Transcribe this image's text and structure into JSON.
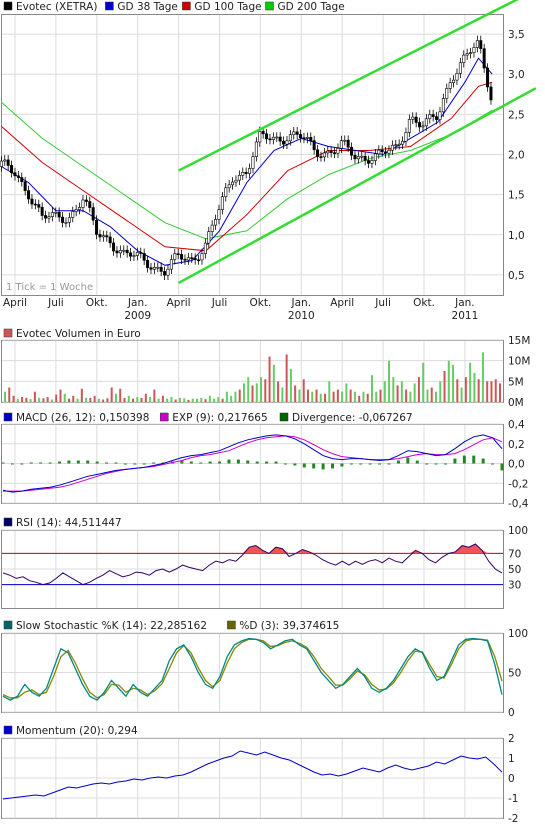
{
  "chart_data": [
    {
      "type": "line",
      "panel": "price",
      "legend": [
        {
          "name": "Evotec (XETRA)",
          "color": "#000000"
        },
        {
          "name": "GD 38 Tage",
          "color": "#0000cc"
        },
        {
          "name": "GD 100 Tage",
          "color": "#cc0000"
        },
        {
          "name": "GD 200 Tage",
          "color": "#00cc00"
        }
      ],
      "note": "1 Tick = 1 Woche",
      "y_ticks": [
        "0,5",
        "1,0",
        "1,5",
        "2,0",
        "2,5",
        "3,0",
        "3,5"
      ],
      "y_tick_values": [
        0.5,
        1.0,
        1.5,
        2.0,
        2.5,
        3.0,
        3.5
      ],
      "ylim": [
        0.25,
        3.75
      ],
      "x_month_labels": [
        "April",
        "Juli",
        "Okt.",
        "Jan.",
        "April",
        "Juli",
        "Okt.",
        "Jan.",
        "April",
        "Juli",
        "Okt.",
        "Jan."
      ],
      "x_year_labels": [
        "2009",
        "2010",
        "2011"
      ],
      "x_label_dates": [
        "2008-04",
        "2008-07",
        "2008-10",
        "2009-01",
        "2009-04",
        "2009-07",
        "2009-10",
        "2010-01",
        "2010-04",
        "2010-07",
        "2010-10",
        "2011-01"
      ],
      "close": [
        {
          "date": "2008-03",
          "value": 1.85
        },
        {
          "date": "2008-04",
          "value": 1.75
        },
        {
          "date": "2008-05",
          "value": 1.55
        },
        {
          "date": "2008-06",
          "value": 1.2
        },
        {
          "date": "2008-07",
          "value": 1.2
        },
        {
          "date": "2008-08",
          "value": 1.25
        },
        {
          "date": "2008-09",
          "value": 1.45
        },
        {
          "date": "2008-10",
          "value": 1.0
        },
        {
          "date": "2008-11",
          "value": 0.95
        },
        {
          "date": "2008-12",
          "value": 0.75
        },
        {
          "date": "2009-01",
          "value": 0.7
        },
        {
          "date": "2009-02",
          "value": 0.65
        },
        {
          "date": "2009-03",
          "value": 0.55
        },
        {
          "date": "2009-04",
          "value": 0.7
        },
        {
          "date": "2009-05",
          "value": 0.7
        },
        {
          "date": "2009-06",
          "value": 0.9
        },
        {
          "date": "2009-07",
          "value": 1.3
        },
        {
          "date": "2009-08",
          "value": 1.75
        },
        {
          "date": "2009-09",
          "value": 1.8
        },
        {
          "date": "2009-10",
          "value": 2.2
        },
        {
          "date": "2009-11",
          "value": 2.2
        },
        {
          "date": "2009-12",
          "value": 2.25
        },
        {
          "date": "2010-01",
          "value": 2.2
        },
        {
          "date": "2010-02",
          "value": 2.05
        },
        {
          "date": "2010-03",
          "value": 2.05
        },
        {
          "date": "2010-04",
          "value": 2.1
        },
        {
          "date": "2010-05",
          "value": 1.95
        },
        {
          "date": "2010-06",
          "value": 2.0
        },
        {
          "date": "2010-07",
          "value": 2.0
        },
        {
          "date": "2010-08",
          "value": 2.05
        },
        {
          "date": "2010-09",
          "value": 2.5
        },
        {
          "date": "2010-10",
          "value": 2.35
        },
        {
          "date": "2010-11",
          "value": 2.45
        },
        {
          "date": "2010-12",
          "value": 3.0
        },
        {
          "date": "2011-01",
          "value": 3.2
        },
        {
          "date": "2011-02",
          "value": 3.35
        },
        {
          "date": "2011-03",
          "value": 2.7
        }
      ],
      "gd38": [
        {
          "date": "2008-03",
          "value": 1.85
        },
        {
          "date": "2008-05",
          "value": 1.65
        },
        {
          "date": "2008-07",
          "value": 1.3
        },
        {
          "date": "2008-09",
          "value": 1.3
        },
        {
          "date": "2008-11",
          "value": 1.1
        },
        {
          "date": "2009-01",
          "value": 0.8
        },
        {
          "date": "2009-03",
          "value": 0.62
        },
        {
          "date": "2009-05",
          "value": 0.68
        },
        {
          "date": "2009-07",
          "value": 1.05
        },
        {
          "date": "2009-09",
          "value": 1.65
        },
        {
          "date": "2009-11",
          "value": 2.05
        },
        {
          "date": "2010-01",
          "value": 2.2
        },
        {
          "date": "2010-03",
          "value": 2.1
        },
        {
          "date": "2010-05",
          "value": 2.05
        },
        {
          "date": "2010-07",
          "value": 2.0
        },
        {
          "date": "2010-09",
          "value": 2.2
        },
        {
          "date": "2010-11",
          "value": 2.4
        },
        {
          "date": "2011-01",
          "value": 2.9
        },
        {
          "date": "2011-02",
          "value": 3.2
        },
        {
          "date": "2011-03",
          "value": 3.0
        }
      ],
      "gd100": [
        {
          "date": "2008-03",
          "value": 2.35
        },
        {
          "date": "2008-06",
          "value": 1.9
        },
        {
          "date": "2008-09",
          "value": 1.55
        },
        {
          "date": "2008-12",
          "value": 1.2
        },
        {
          "date": "2009-03",
          "value": 0.85
        },
        {
          "date": "2009-06",
          "value": 0.8
        },
        {
          "date": "2009-09",
          "value": 1.25
        },
        {
          "date": "2009-12",
          "value": 1.8
        },
        {
          "date": "2010-03",
          "value": 2.05
        },
        {
          "date": "2010-06",
          "value": 2.05
        },
        {
          "date": "2010-09",
          "value": 2.1
        },
        {
          "date": "2010-12",
          "value": 2.45
        },
        {
          "date": "2011-02",
          "value": 2.85
        },
        {
          "date": "2011-03",
          "value": 2.9
        }
      ],
      "gd200": [
        {
          "date": "2008-03",
          "value": 2.65
        },
        {
          "date": "2008-06",
          "value": 2.2
        },
        {
          "date": "2008-09",
          "value": 1.85
        },
        {
          "date": "2008-12",
          "value": 1.5
        },
        {
          "date": "2009-03",
          "value": 1.15
        },
        {
          "date": "2009-06",
          "value": 0.95
        },
        {
          "date": "2009-09",
          "value": 1.05
        },
        {
          "date": "2009-12",
          "value": 1.45
        },
        {
          "date": "2010-03",
          "value": 1.75
        },
        {
          "date": "2010-06",
          "value": 1.95
        },
        {
          "date": "2010-09",
          "value": 2.05
        },
        {
          "date": "2010-12",
          "value": 2.25
        },
        {
          "date": "2011-03",
          "value": 2.55
        }
      ],
      "trend_upper": [
        {
          "date": "2009-04",
          "value": 1.8
        },
        {
          "date": "2011-04",
          "value": 3.7
        }
      ],
      "trend_lower": [
        {
          "date": "2009-04",
          "value": 0.4
        },
        {
          "date": "2011-04",
          "value": 2.45
        }
      ]
    },
    {
      "type": "bar",
      "panel": "volume",
      "title": "Evotec Volumen in Euro",
      "y_ticks": [
        "0M",
        "5M",
        "10M",
        "15M"
      ],
      "y_tick_values": [
        0,
        5,
        10,
        15
      ],
      "ylim": [
        0,
        15
      ],
      "values": [
        2.5,
        3.5,
        1.5,
        0.8,
        1.2,
        1.0,
        0.7,
        2.5,
        1.0,
        0.9,
        1.2,
        0.6,
        1.8,
        3.0,
        2.0,
        0.8,
        1.5,
        0.8,
        3.2,
        1.0,
        1.0,
        1.5,
        0.8,
        0.6,
        0.9,
        3.5,
        2.0,
        3.2,
        1.0,
        1.5,
        0.8,
        1.2,
        1.0,
        2.0,
        1.2,
        3.0,
        0.8,
        1.5,
        0.8,
        1.2,
        0.6,
        1.0,
        0.9,
        0.5,
        0.8,
        0.8,
        1.0,
        0.7,
        1.5,
        0.8,
        1.2,
        0.8,
        2.5,
        1.5,
        2.5,
        3.0,
        4.5,
        6.0,
        4.0,
        4.5,
        6.0,
        5.5,
        11.0,
        9.0,
        5.0,
        3.5,
        11.5,
        8.0,
        4.0,
        3.0,
        5.5,
        3.0,
        2.5,
        3.0,
        2.0,
        2.0,
        5.0,
        2.5,
        3.0,
        2.5,
        4.5,
        3.0,
        2.5,
        1.5,
        2.5,
        2.0,
        6.5,
        2.5,
        3.0,
        5.0,
        10.0,
        6.0,
        4.0,
        5.0,
        3.0,
        2.5,
        4.5,
        6.0,
        9.5,
        3.0,
        3.5,
        2.5,
        5.0,
        7.5,
        10.0,
        9.0,
        5.5,
        3.5,
        6.0,
        9.5,
        7.0,
        5.5,
        12.0,
        5.0,
        5.0,
        5.5,
        4.5
      ],
      "up": [
        1,
        0,
        0,
        1,
        0,
        0,
        1,
        0,
        1,
        0,
        0,
        1,
        0,
        0,
        1,
        0,
        0,
        1,
        0,
        1,
        0,
        0,
        1,
        0,
        0,
        0,
        1,
        0,
        0,
        1,
        0,
        1,
        0,
        0,
        1,
        0,
        1,
        0,
        1,
        1,
        0,
        1,
        1,
        0,
        1,
        1,
        1,
        0,
        1,
        1,
        1,
        0,
        1,
        1,
        1,
        0,
        1,
        1,
        0,
        1,
        1,
        0,
        0,
        1,
        0,
        1,
        0,
        1,
        0,
        1,
        0,
        0,
        1,
        0,
        1,
        0,
        1,
        0,
        0,
        1,
        1,
        0,
        1,
        0,
        1,
        0,
        1,
        1,
        0,
        1,
        1,
        1,
        0,
        1,
        0,
        1,
        1,
        0,
        1,
        1,
        0,
        1,
        1,
        0,
        1,
        1,
        0,
        1,
        0,
        1,
        1,
        0,
        1,
        0,
        0,
        0,
        0
      ]
    },
    {
      "type": "line",
      "panel": "macd",
      "legend": [
        {
          "name": "MACD (26, 12): 0,150398",
          "color": "#0000cc"
        },
        {
          "name": "EXP (9): 0,217665",
          "color": "#cc00cc"
        },
        {
          "name": "Divergence: -0,067267",
          "color": "#006600"
        }
      ],
      "y_ticks": [
        "-0,4",
        "-0,2",
        "0,0",
        "0,2",
        "0,4"
      ],
      "y_tick_values": [
        -0.4,
        -0.2,
        0.0,
        0.2,
        0.4
      ],
      "ylim": [
        -0.4,
        0.4
      ],
      "macd": [
        -0.27,
        -0.29,
        -0.28,
        -0.26,
        -0.25,
        -0.24,
        -0.22,
        -0.19,
        -0.16,
        -0.13,
        -0.11,
        -0.09,
        -0.07,
        -0.06,
        -0.05,
        -0.04,
        -0.02,
        0.0,
        0.03,
        0.06,
        0.08,
        0.09,
        0.11,
        0.13,
        0.17,
        0.21,
        0.24,
        0.26,
        0.28,
        0.29,
        0.28,
        0.25,
        0.2,
        0.14,
        0.08,
        0.05,
        0.04,
        0.05,
        0.05,
        0.04,
        0.03,
        0.04,
        0.08,
        0.13,
        0.12,
        0.1,
        0.08,
        0.09,
        0.15,
        0.22,
        0.27,
        0.29,
        0.26,
        0.15
      ],
      "exp": [
        -0.28,
        -0.28,
        -0.28,
        -0.27,
        -0.26,
        -0.25,
        -0.24,
        -0.22,
        -0.19,
        -0.16,
        -0.13,
        -0.1,
        -0.08,
        -0.06,
        -0.05,
        -0.04,
        -0.03,
        -0.01,
        0.01,
        0.03,
        0.06,
        0.08,
        0.09,
        0.11,
        0.13,
        0.17,
        0.21,
        0.24,
        0.26,
        0.27,
        0.28,
        0.27,
        0.24,
        0.19,
        0.14,
        0.1,
        0.07,
        0.06,
        0.05,
        0.04,
        0.04,
        0.04,
        0.05,
        0.07,
        0.09,
        0.1,
        0.09,
        0.09,
        0.1,
        0.14,
        0.19,
        0.24,
        0.26,
        0.22
      ],
      "divergence": [
        0.01,
        -0.01,
        0.0,
        0.01,
        0.01,
        0.01,
        0.02,
        0.03,
        0.03,
        0.03,
        0.02,
        0.01,
        0.01,
        0.0,
        0.0,
        0.0,
        0.01,
        0.01,
        0.02,
        0.03,
        0.02,
        0.01,
        0.02,
        0.02,
        0.04,
        0.04,
        0.03,
        0.02,
        0.02,
        0.02,
        0.0,
        -0.02,
        -0.04,
        -0.05,
        -0.06,
        -0.05,
        -0.03,
        -0.01,
        0.0,
        0.0,
        -0.01,
        0.0,
        0.03,
        0.06,
        0.03,
        0.0,
        -0.01,
        0.0,
        0.05,
        0.08,
        0.08,
        0.05,
        0.0,
        -0.07
      ]
    },
    {
      "type": "line",
      "panel": "rsi",
      "legend": [
        {
          "name": "RSI (14): 44,511447",
          "color": "#000066"
        }
      ],
      "y_ticks": [
        "30",
        "50",
        "70",
        "100"
      ],
      "y_tick_values": [
        30,
        50,
        70,
        100
      ],
      "ylim": [
        0,
        100
      ],
      "bands": [
        30,
        70
      ],
      "values": [
        45,
        42,
        38,
        40,
        35,
        33,
        30,
        32,
        38,
        45,
        40,
        35,
        30,
        33,
        38,
        42,
        48,
        44,
        40,
        42,
        46,
        45,
        42,
        48,
        50,
        46,
        50,
        55,
        52,
        50,
        48,
        55,
        60,
        58,
        62,
        60,
        68,
        78,
        80,
        74,
        70,
        78,
        76,
        66,
        70,
        75,
        72,
        68,
        62,
        58,
        55,
        60,
        55,
        60,
        56,
        60,
        62,
        58,
        64,
        60,
        58,
        66,
        74,
        70,
        62,
        58,
        65,
        70,
        72,
        80,
        78,
        82,
        74,
        60,
        50,
        45
      ]
    },
    {
      "type": "line",
      "panel": "stochastic",
      "legend": [
        {
          "name": "Slow Stochastic %K (14): 22,285162",
          "color": "#006666"
        },
        {
          "name": "%D (3): 39,374615",
          "color": "#666600"
        }
      ],
      "y_ticks": [
        "0",
        "50",
        "100"
      ],
      "y_tick_values": [
        0,
        50,
        100
      ],
      "ylim": [
        0,
        100
      ],
      "k": [
        20,
        15,
        20,
        35,
        25,
        20,
        30,
        55,
        80,
        75,
        55,
        35,
        20,
        15,
        25,
        40,
        30,
        20,
        35,
        25,
        20,
        30,
        40,
        65,
        80,
        85,
        70,
        50,
        35,
        30,
        45,
        70,
        85,
        90,
        93,
        92,
        88,
        80,
        85,
        90,
        92,
        85,
        80,
        65,
        50,
        40,
        30,
        35,
        45,
        55,
        45,
        30,
        25,
        30,
        40,
        55,
        70,
        80,
        75,
        55,
        40,
        45,
        65,
        85,
        92,
        93,
        92,
        90,
        60,
        22
      ],
      "d": [
        22,
        18,
        18,
        25,
        28,
        22,
        25,
        45,
        70,
        78,
        62,
        42,
        25,
        18,
        22,
        35,
        34,
        25,
        30,
        28,
        22,
        27,
        36,
        55,
        75,
        84,
        75,
        56,
        40,
        32,
        40,
        62,
        80,
        88,
        92,
        92,
        90,
        83,
        84,
        88,
        90,
        87,
        82,
        70,
        55,
        45,
        34,
        34,
        42,
        52,
        47,
        35,
        28,
        29,
        37,
        50,
        65,
        77,
        76,
        60,
        45,
        43,
        60,
        80,
        90,
        92,
        92,
        91,
        70,
        39
      ]
    },
    {
      "type": "line",
      "panel": "momentum",
      "legend": [
        {
          "name": "Momentum (20): 0,294",
          "color": "#0000cc"
        }
      ],
      "y_ticks": [
        "-2",
        "-1",
        "0",
        "1",
        "2"
      ],
      "y_tick_values": [
        -2,
        -1,
        0,
        1,
        2
      ],
      "ylim": [
        -2,
        2
      ],
      "values": [
        -1.05,
        -1.0,
        -0.95,
        -0.9,
        -0.85,
        -0.9,
        -0.75,
        -0.6,
        -0.45,
        -0.5,
        -0.4,
        -0.3,
        -0.25,
        -0.3,
        -0.2,
        -0.15,
        -0.05,
        -0.1,
        0.0,
        0.05,
        0.0,
        0.1,
        0.15,
        0.3,
        0.5,
        0.7,
        0.85,
        1.0,
        1.1,
        1.35,
        1.25,
        1.15,
        1.3,
        1.15,
        1.0,
        0.9,
        0.7,
        0.5,
        0.3,
        0.15,
        0.2,
        0.1,
        0.2,
        0.35,
        0.5,
        0.4,
        0.3,
        0.5,
        0.65,
        0.5,
        0.4,
        0.5,
        0.6,
        0.8,
        0.7,
        0.9,
        1.1,
        1.0,
        0.95,
        1.05,
        0.7,
        0.29
      ]
    }
  ]
}
